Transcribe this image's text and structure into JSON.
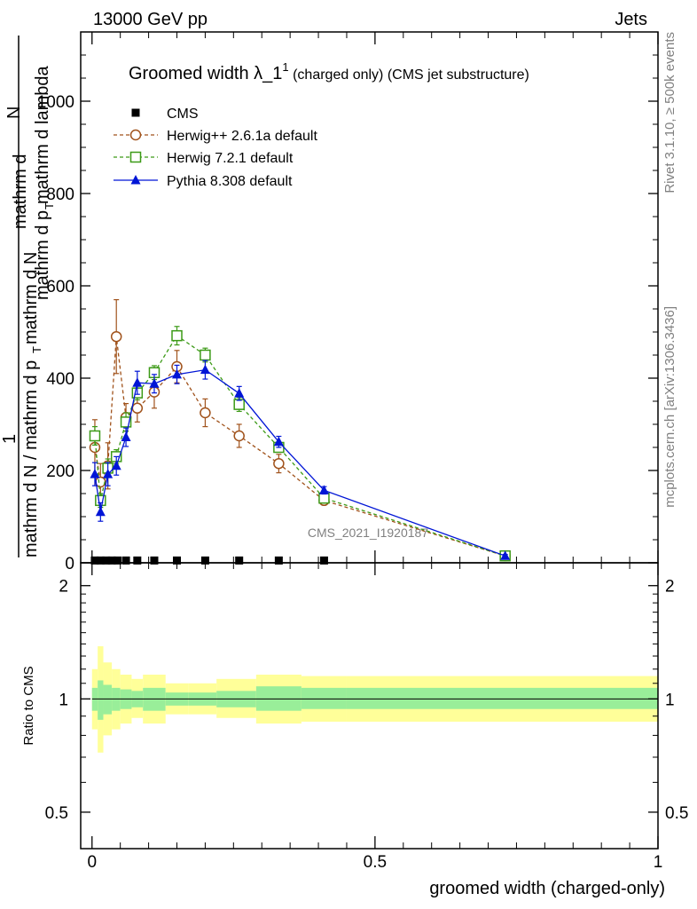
{
  "header": {
    "left_label": "13000 GeV pp",
    "right_label": "Jets",
    "side_top": "Rivet 3.1.10, ≥ 500k events",
    "side_bottom": "mcplots.cern.ch [arXiv:1306.3436]",
    "watermark": "CMS_2021_I1920187"
  },
  "main_title": {
    "part1": "Groomed width ",
    "symbol": "λ_1",
    "sup": "1",
    "part2": " (charged only) (CMS jet substructure)"
  },
  "y_axis_main": {
    "num_line1": "mathrm d",
    "num_N": "N",
    "num_line2": "mathrm d p",
    "num_T": "T",
    "num_line3": " mathrm d lambda",
    "frac_one": "1",
    "den": "mathrm d N / mathrm d p",
    "den_T": "T",
    "den_tail": "mathrm d N"
  },
  "y_axis_ratio_label": "Ratio to CMS",
  "x_axis_label": "groomed width (charged-only)",
  "colors": {
    "herwig_pp": "#a0521b",
    "herwig7": "#3c9a17",
    "pythia": "#0015d6",
    "band_inner": "#99ee99",
    "band_outer": "#ffff99"
  },
  "chart_data": [
    {
      "type": "line",
      "panel": "main",
      "xlim": [
        -0.02,
        1.0
      ],
      "ylim": [
        0,
        1150
      ],
      "yticks": [
        {
          "v": 0,
          "label": "0"
        },
        {
          "v": 200,
          "label": "200"
        },
        {
          "v": 400,
          "label": "400"
        },
        {
          "v": 600,
          "label": "600"
        },
        {
          "v": 800,
          "label": "800"
        },
        {
          "v": 1000,
          "label": "1000"
        }
      ],
      "legend": {
        "placement": "top-left",
        "entries": [
          "CMS",
          "Herwig++ 2.6.1a default",
          "Herwig 7.2.1 default",
          "Pythia 8.308 default"
        ]
      },
      "series": [
        {
          "name": "CMS",
          "marker": "square-filled",
          "x": [
            0.005,
            0.015,
            0.025,
            0.035,
            0.045,
            0.06,
            0.08,
            0.11,
            0.15,
            0.2,
            0.26,
            0.33,
            0.41
          ],
          "y": [
            5,
            5,
            5,
            5,
            5,
            5,
            5,
            5,
            5,
            5,
            5,
            5,
            5
          ]
        },
        {
          "name": "Herwig++ 2.6.1a default",
          "marker": "circle-open",
          "style": "dashed",
          "x": [
            0.005,
            0.015,
            0.028,
            0.043,
            0.06,
            0.08,
            0.11,
            0.15,
            0.2,
            0.26,
            0.33,
            0.41,
            0.73
          ],
          "y": [
            250,
            175,
            210,
            490,
            315,
            335,
            370,
            425,
            325,
            275,
            215,
            135,
            15
          ],
          "err": [
            60,
            40,
            50,
            80,
            30,
            30,
            35,
            35,
            30,
            25,
            20,
            10,
            3
          ]
        },
        {
          "name": "Herwig 7.2.1 default",
          "marker": "square-open",
          "style": "dashed",
          "x": [
            0.005,
            0.015,
            0.028,
            0.043,
            0.06,
            0.08,
            0.11,
            0.15,
            0.2,
            0.26,
            0.33,
            0.41,
            0.73
          ],
          "y": [
            275,
            135,
            205,
            230,
            305,
            368,
            412,
            492,
            450,
            343,
            250,
            140,
            15
          ],
          "err": [
            20,
            15,
            20,
            15,
            20,
            15,
            15,
            20,
            15,
            15,
            10,
            8,
            3
          ]
        },
        {
          "name": "Pythia 8.308 default",
          "marker": "triangle-filled",
          "style": "solid",
          "x": [
            0.005,
            0.015,
            0.028,
            0.043,
            0.06,
            0.08,
            0.11,
            0.15,
            0.2,
            0.26,
            0.33,
            0.41,
            0.73
          ],
          "y": [
            192,
            110,
            192,
            210,
            272,
            390,
            388,
            408,
            418,
            367,
            262,
            157,
            15
          ],
          "err": [
            25,
            20,
            25,
            20,
            20,
            25,
            20,
            20,
            20,
            15,
            12,
            8,
            3
          ]
        }
      ]
    },
    {
      "type": "area",
      "panel": "ratio",
      "xlim": [
        -0.02,
        1.0
      ],
      "ylim": [
        0.4,
        2.3
      ],
      "yscale": "log",
      "ylabel": "Ratio to CMS",
      "yticks": [
        {
          "v": 0.5,
          "label": "0.5"
        },
        {
          "v": 1,
          "label": "1"
        },
        {
          "v": 2,
          "label": "2"
        }
      ],
      "xticks": [
        {
          "v": 0,
          "label": "0"
        },
        {
          "v": 0.5,
          "label": "0.5"
        },
        {
          "v": 1,
          "label": "1"
        }
      ],
      "reference_line": 1,
      "bins": [
        {
          "x0": 0.0,
          "x1": 0.01,
          "in_lo": 0.93,
          "in_hi": 1.07,
          "out_lo": 0.83,
          "out_hi": 1.2
        },
        {
          "x0": 0.01,
          "x1": 0.02,
          "in_lo": 0.88,
          "in_hi": 1.12,
          "out_lo": 0.72,
          "out_hi": 1.38
        },
        {
          "x0": 0.02,
          "x1": 0.035,
          "in_lo": 0.91,
          "in_hi": 1.09,
          "out_lo": 0.8,
          "out_hi": 1.25
        },
        {
          "x0": 0.035,
          "x1": 0.05,
          "in_lo": 0.93,
          "in_hi": 1.07,
          "out_lo": 0.83,
          "out_hi": 1.2
        },
        {
          "x0": 0.05,
          "x1": 0.07,
          "in_lo": 0.94,
          "in_hi": 1.06,
          "out_lo": 0.86,
          "out_hi": 1.16
        },
        {
          "x0": 0.07,
          "x1": 0.09,
          "in_lo": 0.95,
          "in_hi": 1.05,
          "out_lo": 0.89,
          "out_hi": 1.13
        },
        {
          "x0": 0.09,
          "x1": 0.13,
          "in_lo": 0.93,
          "in_hi": 1.07,
          "out_lo": 0.86,
          "out_hi": 1.16
        },
        {
          "x0": 0.13,
          "x1": 0.17,
          "in_lo": 0.96,
          "in_hi": 1.04,
          "out_lo": 0.91,
          "out_hi": 1.1
        },
        {
          "x0": 0.17,
          "x1": 0.22,
          "in_lo": 0.96,
          "in_hi": 1.04,
          "out_lo": 0.91,
          "out_hi": 1.1
        },
        {
          "x0": 0.22,
          "x1": 0.29,
          "in_lo": 0.95,
          "in_hi": 1.05,
          "out_lo": 0.89,
          "out_hi": 1.13
        },
        {
          "x0": 0.29,
          "x1": 0.37,
          "in_lo": 0.93,
          "in_hi": 1.08,
          "out_lo": 0.86,
          "out_hi": 1.16
        },
        {
          "x0": 0.37,
          "x1": 0.45,
          "in_lo": 0.94,
          "in_hi": 1.07,
          "out_lo": 0.87,
          "out_hi": 1.15
        },
        {
          "x0": 0.45,
          "x1": 1.0,
          "in_lo": 0.94,
          "in_hi": 1.07,
          "out_lo": 0.87,
          "out_hi": 1.15
        }
      ]
    }
  ]
}
